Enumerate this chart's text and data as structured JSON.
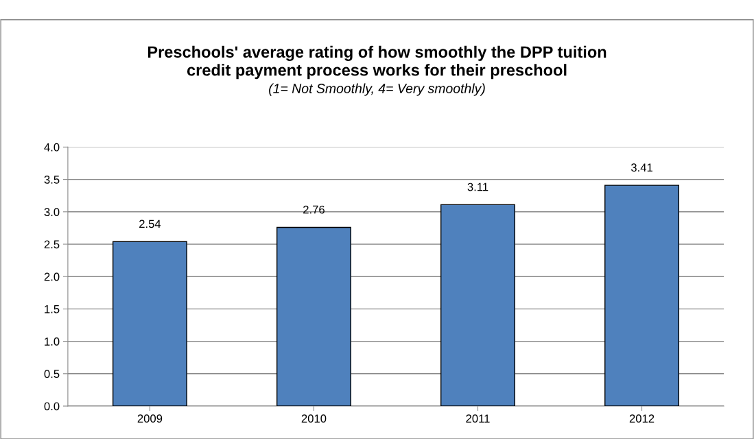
{
  "chart_data": {
    "type": "bar",
    "title": "Preschools' average rating of how smoothly the DPP tuition\ncredit payment process works for their preschool",
    "subtitle": "(1= Not Smoothly, 4= Very smoothly)",
    "categories": [
      "2009",
      "2010",
      "2011",
      "2012"
    ],
    "values": [
      2.54,
      2.76,
      3.11,
      3.41
    ],
    "color": "#4f81bd",
    "ylim": [
      0,
      4
    ],
    "yticks": [
      {
        "value": 0,
        "label": "0.0"
      },
      {
        "value": 0.5,
        "label": "0.5"
      },
      {
        "value": 1,
        "label": "1.0"
      },
      {
        "value": 1.5,
        "label": "1.5"
      },
      {
        "value": 2,
        "label": "2.0"
      },
      {
        "value": 2.5,
        "label": "2.5"
      },
      {
        "value": 3,
        "label": "3.0"
      },
      {
        "value": 3.5,
        "label": "3.5"
      },
      {
        "value": 4,
        "label": "4.0"
      }
    ],
    "grid": "y",
    "data_labels": true,
    "legend": false
  }
}
